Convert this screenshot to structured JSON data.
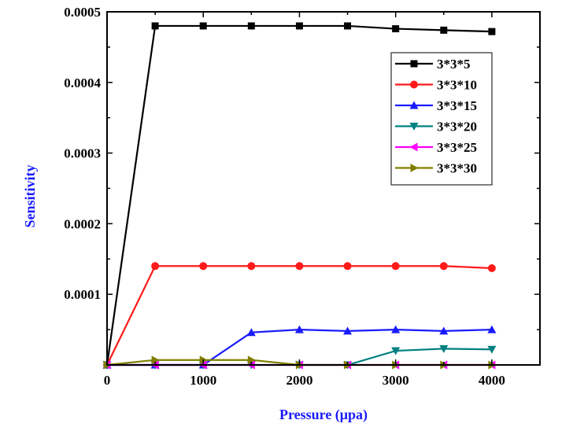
{
  "chart_data": {
    "type": "line",
    "title": "",
    "xlabel": "Pressure (μpa)",
    "ylabel": "Sensitivity",
    "xlim": [
      0,
      4500
    ],
    "ylim": [
      0,
      0.0005
    ],
    "x_ticks": [
      0,
      1000,
      2000,
      3000,
      4000
    ],
    "x_tick_labels": [
      "0",
      "1000",
      "2000",
      "3000",
      "4000"
    ],
    "y_ticks": [
      0.0001,
      0.0002,
      0.0003,
      0.0004,
      0.0005
    ],
    "y_tick_labels": [
      "0.0001",
      "0.0002",
      "0.0003",
      "0.0004",
      "0.0005"
    ],
    "x": [
      0,
      500,
      1000,
      1500,
      2000,
      2500,
      3000,
      3500,
      4000
    ],
    "grid": false,
    "legend_position": "top-right",
    "axis_label_color": "#1a1aff",
    "series": [
      {
        "name": "3*3*5",
        "color": "#000000",
        "marker": "square",
        "values": [
          0,
          0.00048,
          0.00048,
          0.00048,
          0.00048,
          0.00048,
          0.000476,
          0.000474,
          0.000472
        ]
      },
      {
        "name": "3*3*10",
        "color": "#ff1a1a",
        "marker": "circle",
        "values": [
          0,
          0.00014,
          0.00014,
          0.00014,
          0.00014,
          0.00014,
          0.00014,
          0.00014,
          0.000137
        ]
      },
      {
        "name": "3*3*15",
        "color": "#1a1aff",
        "marker": "triangle-up",
        "values": [
          0,
          0,
          0,
          4.6e-05,
          5e-05,
          4.8e-05,
          5e-05,
          4.8e-05,
          5e-05
        ]
      },
      {
        "name": "3*3*20",
        "color": "#008080",
        "marker": "triangle-down",
        "values": [
          0,
          0,
          0,
          0,
          0,
          0,
          2e-05,
          2.3e-05,
          2.2e-05
        ]
      },
      {
        "name": "3*3*25",
        "color": "#ff00ff",
        "marker": "triangle-left",
        "values": [
          0,
          0,
          0,
          0,
          0,
          0,
          0,
          0,
          0
        ]
      },
      {
        "name": "3*3*30",
        "color": "#808000",
        "marker": "triangle-right",
        "values": [
          0,
          7e-06,
          7e-06,
          7e-06,
          0,
          0,
          0,
          0,
          0
        ]
      }
    ]
  }
}
